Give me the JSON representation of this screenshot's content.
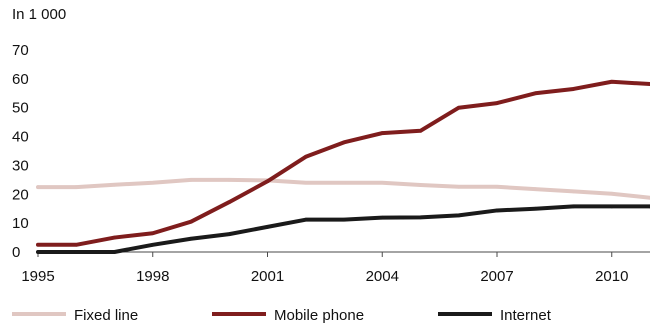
{
  "chart_data": {
    "type": "line",
    "title": "",
    "ylabel": "In 1 000",
    "xlabel": "",
    "xlim": [
      1995,
      2011
    ],
    "ylim": [
      0,
      70
    ],
    "x_ticks": [
      1995,
      1998,
      2001,
      2004,
      2007,
      2010
    ],
    "y_ticks": [
      0,
      10,
      20,
      30,
      40,
      50,
      60,
      70
    ],
    "x_tick_labels": [
      "1995",
      "1998",
      "2001",
      "2004",
      "2007",
      "2010"
    ],
    "y_tick_labels": [
      "0",
      "10",
      "20",
      "30",
      "40",
      "50",
      "60",
      "70"
    ],
    "grid": false,
    "legend_position": "bottom",
    "series": [
      {
        "name": "Fixed line",
        "color": "#E0C7C2",
        "points": [
          [
            1995,
            22.5
          ],
          [
            1996,
            22.5
          ],
          [
            1997,
            23.3
          ],
          [
            1998,
            24
          ],
          [
            1999,
            25
          ],
          [
            2000,
            25
          ],
          [
            2001,
            24.8
          ],
          [
            2002,
            24
          ],
          [
            2003,
            24
          ],
          [
            2004,
            24
          ],
          [
            2005,
            23.2
          ],
          [
            2006,
            22.6
          ],
          [
            2007,
            22.6
          ],
          [
            2008,
            21.8
          ],
          [
            2009,
            21
          ],
          [
            2010,
            20.2
          ],
          [
            2011,
            18.8
          ]
        ]
      },
      {
        "name": "Mobile phone",
        "color": "#7F1D1D",
        "points": [
          [
            1995,
            2.5
          ],
          [
            1996,
            2.5
          ],
          [
            1997,
            5
          ],
          [
            1998,
            6.5
          ],
          [
            1999,
            10.5
          ],
          [
            2000,
            17.3
          ],
          [
            2001,
            24.5
          ],
          [
            2002,
            33
          ],
          [
            2003,
            38
          ],
          [
            2004,
            41.2
          ],
          [
            2005,
            42
          ],
          [
            2006,
            50
          ],
          [
            2007,
            51.6
          ],
          [
            2008,
            55
          ],
          [
            2009,
            56.5
          ],
          [
            2010,
            59
          ],
          [
            2011,
            58.2
          ]
        ]
      },
      {
        "name": "Internet",
        "color": "#1A1A1A",
        "points": [
          [
            1995,
            0
          ],
          [
            1996,
            0
          ],
          [
            1997,
            0
          ],
          [
            1998,
            2.5
          ],
          [
            1999,
            4.6
          ],
          [
            2000,
            6.2
          ],
          [
            2001,
            8.7
          ],
          [
            2002,
            11.2
          ],
          [
            2003,
            11.2
          ],
          [
            2004,
            11.9
          ],
          [
            2005,
            12
          ],
          [
            2006,
            12.7
          ],
          [
            2007,
            14.4
          ],
          [
            2008,
            15
          ],
          [
            2009,
            15.8
          ],
          [
            2010,
            15.8
          ],
          [
            2011,
            15.8
          ]
        ]
      }
    ]
  }
}
